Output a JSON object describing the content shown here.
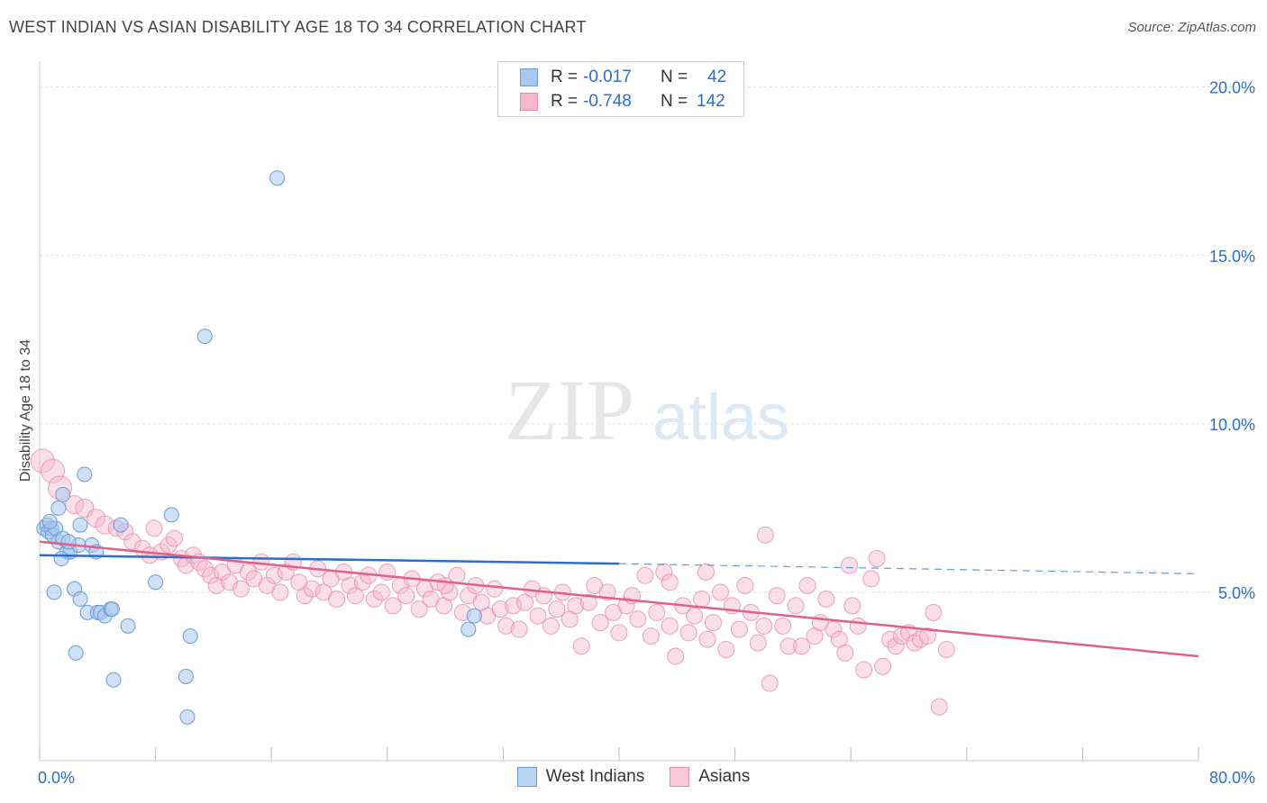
{
  "title": "WEST INDIAN VS ASIAN DISABILITY AGE 18 TO 34 CORRELATION CHART",
  "source": "Source: ZipAtlas.com",
  "watermark": {
    "zip": "ZIP",
    "atlas": "atlas"
  },
  "colors": {
    "west_indian_fill": "#a9c8f0",
    "west_indian_stroke": "#6a9bd8",
    "west_indian_line": "#2a6fcb",
    "asian_fill": "#f7b8cb",
    "asian_stroke": "#e98aa8",
    "asian_line": "#e0608a",
    "tick_label": "#2a6fcb",
    "grid": "#dddddd"
  },
  "legend_top": {
    "rows": [
      {
        "r_label": "R =",
        "r_value": "-0.017",
        "n_label": "N =",
        "n_value": "42"
      },
      {
        "r_label": "R =",
        "r_value": "-0.748",
        "n_label": "N =",
        "n_value": "142"
      }
    ]
  },
  "legend_bottom": {
    "west_indians": "West Indians",
    "asians": "Asians"
  },
  "chart_data": {
    "type": "scatter",
    "title": "WEST INDIAN VS ASIAN DISABILITY AGE 18 TO 34 CORRELATION CHART",
    "xlabel": "",
    "ylabel": "Disability Age 18 to 34",
    "xlim": [
      0,
      80
    ],
    "ylim": [
      0,
      20.5
    ],
    "x_tick_labels": [
      {
        "value": 0,
        "label": "0.0%"
      },
      {
        "value": 80,
        "label": "80.0%"
      }
    ],
    "y_tick_labels": [
      {
        "value": 5,
        "label": "5.0%"
      },
      {
        "value": 10,
        "label": "10.0%"
      },
      {
        "value": 15,
        "label": "15.0%"
      },
      {
        "value": 20,
        "label": "20.0%"
      }
    ],
    "x_minor_ticks": [
      0,
      8,
      16,
      24,
      32,
      40,
      48,
      56,
      64,
      72,
      80
    ],
    "grid": true,
    "legend_placement": "bottom",
    "series": [
      {
        "name": "West Indians",
        "trend": {
          "x": [
            0,
            40
          ],
          "y": [
            6.1,
            5.85
          ],
          "dashed_to": [
            80,
            5.55
          ]
        },
        "points": [
          [
            0.3,
            6.9
          ],
          [
            0.5,
            7.0
          ],
          [
            0.6,
            6.8
          ],
          [
            0.8,
            6.9
          ],
          [
            0.9,
            6.7
          ],
          [
            1.1,
            6.9
          ],
          [
            1.0,
            5.0
          ],
          [
            1.3,
            6.5
          ],
          [
            1.3,
            7.5
          ],
          [
            1.6,
            6.6
          ],
          [
            1.6,
            7.9
          ],
          [
            1.9,
            6.2
          ],
          [
            2.1,
            6.2
          ],
          [
            2.4,
            5.1
          ],
          [
            2.5,
            3.2
          ],
          [
            2.7,
            6.4
          ],
          [
            2.8,
            4.8
          ],
          [
            2.8,
            7.0
          ],
          [
            3.1,
            8.5
          ],
          [
            3.3,
            4.4
          ],
          [
            3.6,
            6.4
          ],
          [
            3.9,
            6.2
          ],
          [
            4.0,
            4.4
          ],
          [
            4.2,
            4.4
          ],
          [
            4.5,
            4.3
          ],
          [
            4.9,
            4.5
          ],
          [
            5.0,
            4.5
          ],
          [
            5.1,
            2.4
          ],
          [
            5.6,
            7.0
          ],
          [
            6.1,
            4.0
          ],
          [
            8.0,
            5.3
          ],
          [
            9.1,
            7.3
          ],
          [
            10.1,
            2.5
          ],
          [
            10.2,
            1.3
          ],
          [
            10.4,
            3.7
          ],
          [
            11.4,
            12.6
          ],
          [
            16.4,
            17.3
          ],
          [
            30.0,
            4.3
          ],
          [
            29.6,
            3.9
          ],
          [
            1.5,
            6.0
          ],
          [
            2.0,
            6.5
          ],
          [
            0.7,
            7.1
          ]
        ]
      },
      {
        "name": "Asians",
        "trend": {
          "x": [
            0,
            80
          ],
          "y": [
            6.5,
            3.1
          ]
        },
        "points": [
          [
            0.2,
            8.9
          ],
          [
            0.9,
            8.6
          ],
          [
            1.4,
            8.1
          ],
          [
            2.4,
            7.6
          ],
          [
            3.1,
            7.5
          ],
          [
            3.9,
            7.2
          ],
          [
            4.5,
            7.0
          ],
          [
            5.3,
            6.9
          ],
          [
            5.9,
            6.8
          ],
          [
            6.4,
            6.5
          ],
          [
            7.1,
            6.3
          ],
          [
            7.6,
            6.1
          ],
          [
            7.9,
            6.9
          ],
          [
            8.4,
            6.2
          ],
          [
            8.9,
            6.4
          ],
          [
            9.3,
            6.6
          ],
          [
            9.8,
            6.0
          ],
          [
            10.1,
            5.8
          ],
          [
            10.6,
            6.1
          ],
          [
            11.0,
            5.9
          ],
          [
            11.4,
            5.7
          ],
          [
            11.8,
            5.5
          ],
          [
            12.2,
            5.2
          ],
          [
            12.6,
            5.6
          ],
          [
            13.1,
            5.3
          ],
          [
            13.5,
            5.8
          ],
          [
            13.9,
            5.1
          ],
          [
            14.4,
            5.6
          ],
          [
            14.8,
            5.4
          ],
          [
            15.3,
            5.9
          ],
          [
            15.7,
            5.2
          ],
          [
            16.2,
            5.5
          ],
          [
            16.6,
            5.0
          ],
          [
            17.0,
            5.6
          ],
          [
            17.5,
            5.9
          ],
          [
            17.9,
            5.3
          ],
          [
            18.3,
            4.9
          ],
          [
            18.8,
            5.1
          ],
          [
            19.2,
            5.7
          ],
          [
            19.6,
            5.0
          ],
          [
            20.1,
            5.4
          ],
          [
            20.5,
            4.8
          ],
          [
            21.0,
            5.6
          ],
          [
            21.4,
            5.2
          ],
          [
            21.8,
            4.9
          ],
          [
            22.3,
            5.3
          ],
          [
            22.7,
            5.5
          ],
          [
            23.1,
            4.8
          ],
          [
            23.6,
            5.0
          ],
          [
            24.0,
            5.6
          ],
          [
            24.4,
            4.6
          ],
          [
            24.9,
            5.2
          ],
          [
            25.3,
            4.9
          ],
          [
            25.7,
            5.4
          ],
          [
            26.2,
            4.5
          ],
          [
            26.6,
            5.1
          ],
          [
            27.0,
            4.8
          ],
          [
            27.5,
            5.3
          ],
          [
            27.9,
            4.6
          ],
          [
            28.3,
            5.0
          ],
          [
            28.8,
            5.5
          ],
          [
            29.2,
            4.4
          ],
          [
            29.6,
            4.9
          ],
          [
            30.1,
            5.2
          ],
          [
            30.5,
            4.7
          ],
          [
            30.9,
            4.3
          ],
          [
            31.4,
            5.1
          ],
          [
            31.8,
            4.5
          ],
          [
            32.2,
            4.0
          ],
          [
            32.7,
            4.6
          ],
          [
            33.1,
            3.9
          ],
          [
            33.5,
            4.7
          ],
          [
            34.0,
            5.1
          ],
          [
            34.4,
            4.3
          ],
          [
            34.8,
            4.9
          ],
          [
            35.3,
            4.0
          ],
          [
            35.7,
            4.5
          ],
          [
            36.1,
            5.0
          ],
          [
            36.6,
            4.2
          ],
          [
            37.0,
            4.6
          ],
          [
            37.4,
            3.4
          ],
          [
            37.9,
            4.7
          ],
          [
            38.3,
            5.2
          ],
          [
            38.7,
            4.1
          ],
          [
            39.2,
            5.0
          ],
          [
            39.6,
            4.4
          ],
          [
            40.0,
            3.8
          ],
          [
            40.5,
            4.6
          ],
          [
            40.9,
            4.9
          ],
          [
            41.3,
            4.2
          ],
          [
            41.8,
            5.5
          ],
          [
            42.2,
            3.7
          ],
          [
            42.6,
            4.4
          ],
          [
            43.1,
            5.6
          ],
          [
            43.5,
            4.0
          ],
          [
            43.9,
            3.1
          ],
          [
            44.4,
            4.6
          ],
          [
            44.8,
            3.8
          ],
          [
            45.2,
            4.3
          ],
          [
            45.7,
            4.8
          ],
          [
            46.1,
            3.6
          ],
          [
            46.5,
            4.1
          ],
          [
            47.0,
            5.0
          ],
          [
            47.4,
            3.3
          ],
          [
            47.8,
            4.6
          ],
          [
            48.3,
            3.9
          ],
          [
            48.7,
            5.2
          ],
          [
            49.1,
            4.4
          ],
          [
            49.6,
            3.5
          ],
          [
            50.0,
            4.0
          ],
          [
            50.4,
            2.3
          ],
          [
            50.9,
            4.9
          ],
          [
            51.3,
            4.0
          ],
          [
            51.7,
            3.4
          ],
          [
            52.2,
            4.6
          ],
          [
            52.6,
            3.4
          ],
          [
            53.0,
            5.2
          ],
          [
            53.5,
            3.7
          ],
          [
            53.9,
            4.1
          ],
          [
            54.3,
            4.8
          ],
          [
            54.8,
            3.9
          ],
          [
            55.2,
            3.6
          ],
          [
            55.6,
            3.2
          ],
          [
            56.1,
            4.6
          ],
          [
            56.5,
            4.0
          ],
          [
            56.9,
            2.7
          ],
          [
            57.4,
            5.4
          ],
          [
            57.8,
            6.0
          ],
          [
            58.2,
            2.8
          ],
          [
            58.7,
            3.6
          ],
          [
            59.1,
            3.4
          ],
          [
            59.5,
            3.7
          ],
          [
            60.0,
            3.8
          ],
          [
            60.4,
            3.5
          ],
          [
            60.8,
            3.6
          ],
          [
            61.3,
            3.7
          ],
          [
            61.7,
            4.4
          ],
          [
            62.1,
            1.6
          ],
          [
            62.6,
            3.3
          ],
          [
            55.9,
            5.8
          ],
          [
            50.1,
            6.7
          ],
          [
            46.0,
            5.6
          ],
          [
            43.5,
            5.3
          ],
          [
            28.0,
            5.2
          ]
        ]
      }
    ]
  }
}
